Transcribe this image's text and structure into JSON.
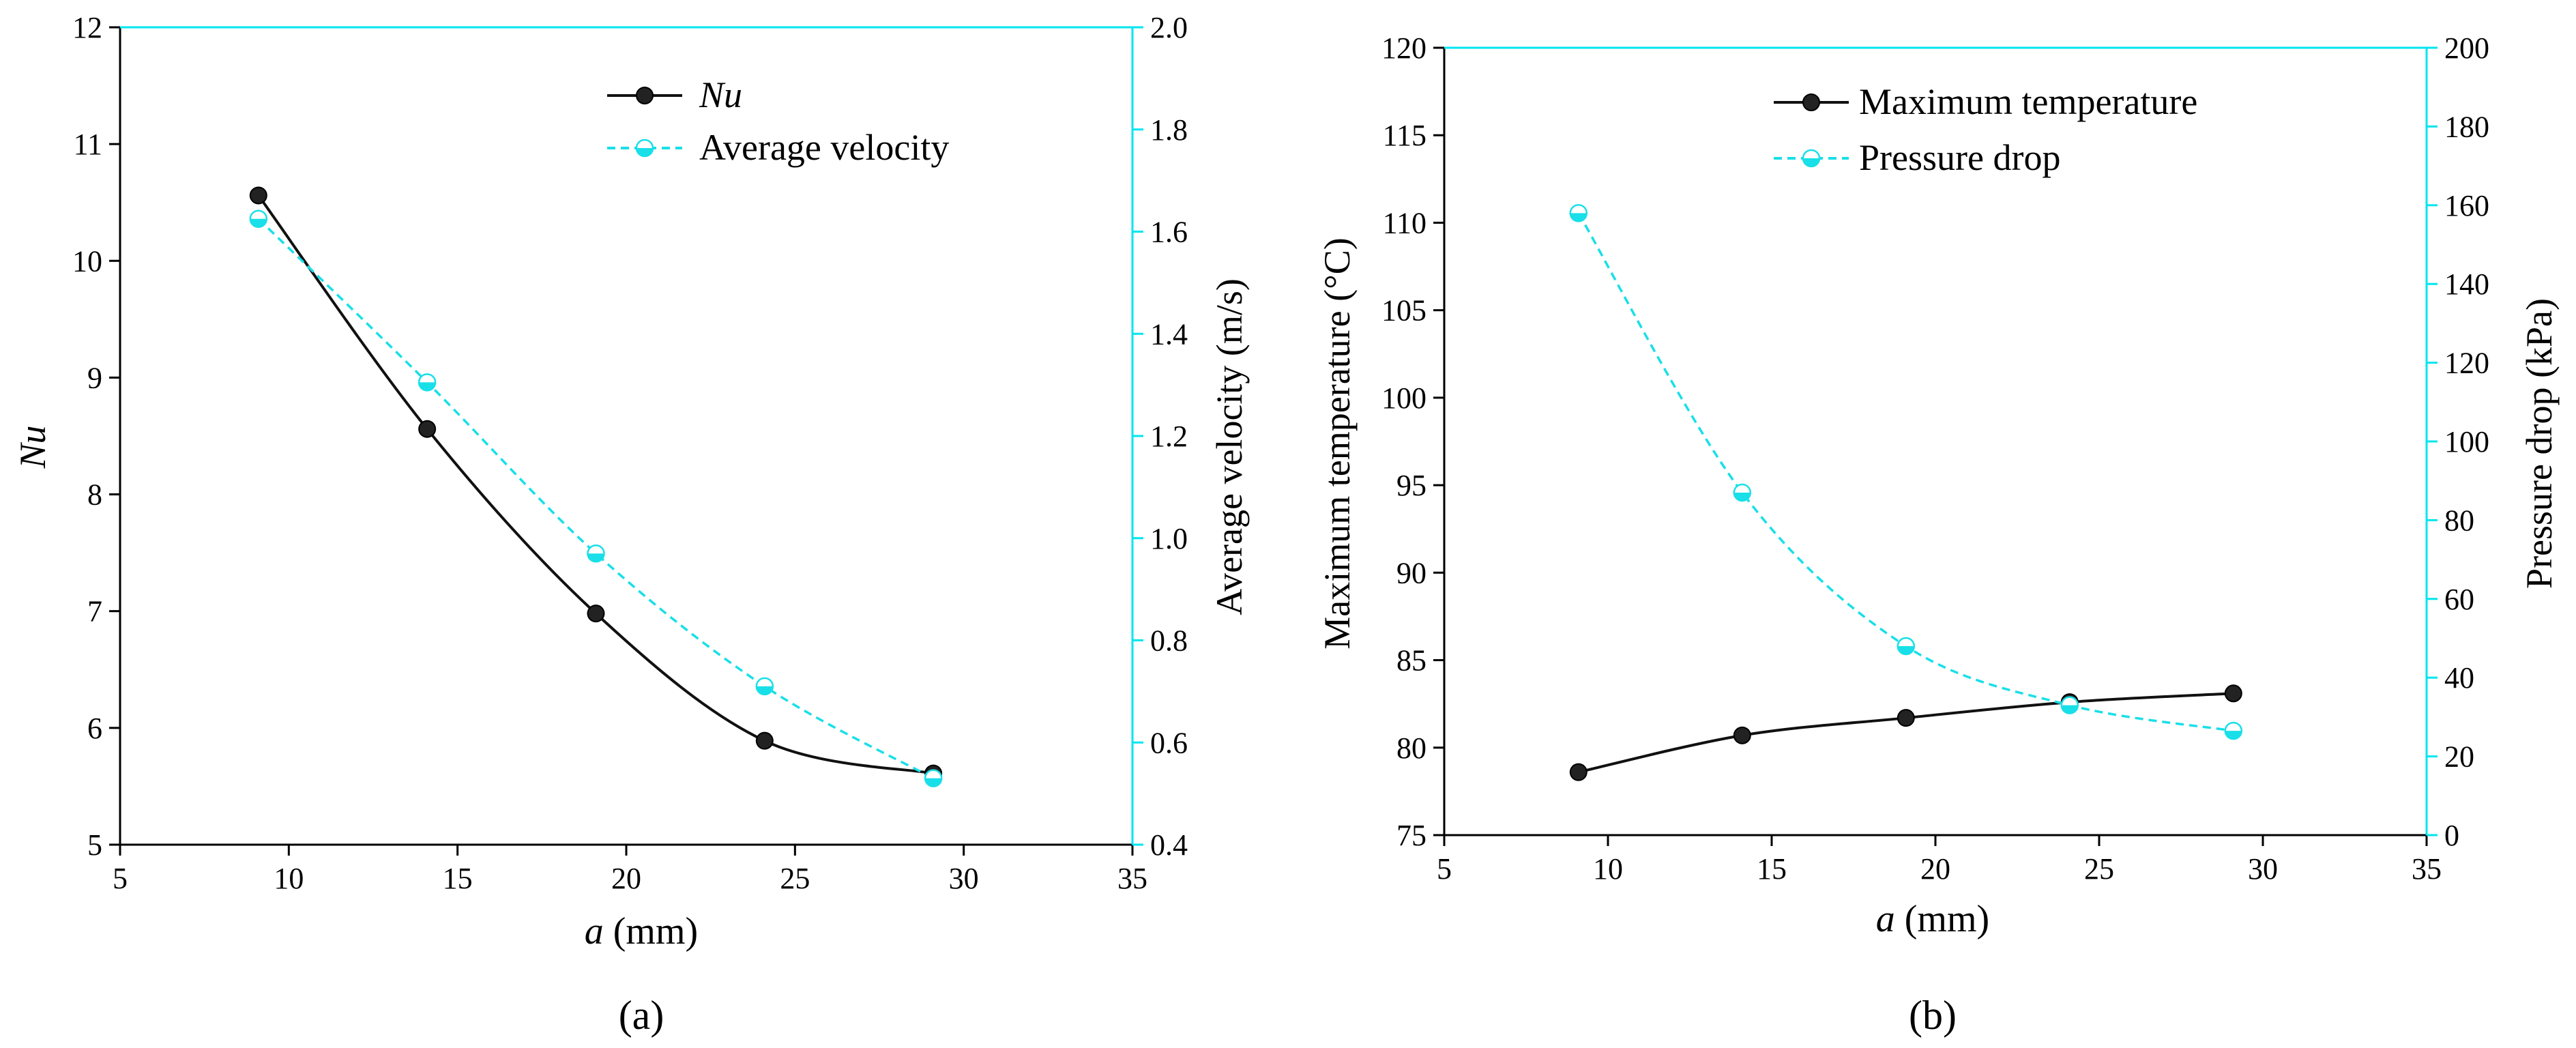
{
  "colors": {
    "left_axis": "#000000",
    "right_axis": "#00e5f0",
    "series1": "#111111",
    "series2": "#19dfe8"
  },
  "chart_data": [
    {
      "type": "line",
      "panel_label": "(a)",
      "xlabel_italic": "a",
      "xlabel_rest": " (mm)",
      "xlim": [
        5,
        35
      ],
      "xticks": [
        5,
        10,
        15,
        20,
        25,
        30,
        35
      ],
      "ylabel": "Nu",
      "ylim": [
        5,
        12
      ],
      "yticks": [
        5,
        6,
        7,
        8,
        9,
        10,
        11,
        12
      ],
      "ylabel2": "Average velocity (m/s)",
      "ylim2": [
        0.4,
        2.0
      ],
      "yticks2": [
        "0.4",
        "0.6",
        "0.8",
        "1.0",
        "1.2",
        "1.4",
        "1.6",
        "1.8",
        "2.0"
      ],
      "legend_position": "top-right",
      "series": [
        {
          "name": "Nu",
          "axis": "left",
          "style": "solid-black-filled-circle",
          "x": [
            9.1,
            14.1,
            19.1,
            24.1,
            29.1
          ],
          "y": [
            10.56,
            8.56,
            6.98,
            5.89,
            5.61
          ]
        },
        {
          "name": "Average velocity",
          "axis": "right",
          "style": "dashed-cyan-half-circle",
          "x": [
            9.1,
            14.1,
            19.1,
            24.1,
            29.1
          ],
          "y": [
            1.625,
            1.305,
            0.97,
            0.71,
            0.53
          ]
        }
      ]
    },
    {
      "type": "line",
      "panel_label": "(b)",
      "xlabel_italic": "a",
      "xlabel_rest": " (mm)",
      "xlim": [
        5,
        35
      ],
      "xticks": [
        5,
        10,
        15,
        20,
        25,
        30,
        35
      ],
      "ylabel": "Maximum temperature (°C)",
      "ylim": [
        75,
        120
      ],
      "yticks": [
        75,
        80,
        85,
        90,
        95,
        100,
        105,
        110,
        115,
        120
      ],
      "ylabel2": "Pressure drop (kPa)",
      "ylim2": [
        0,
        200
      ],
      "yticks2": [
        "0",
        "20",
        "40",
        "60",
        "80",
        "100",
        "120",
        "140",
        "160",
        "180",
        "200"
      ],
      "legend_position": "top-right",
      "series": [
        {
          "name": "Maximum temperature",
          "axis": "left",
          "style": "solid-black-filled-circle",
          "x": [
            9.1,
            14.1,
            19.1,
            24.1,
            29.1
          ],
          "y": [
            78.6,
            80.7,
            81.7,
            82.6,
            83.1
          ]
        },
        {
          "name": "Pressure drop",
          "axis": "right",
          "style": "dashed-cyan-half-circle",
          "x": [
            9.1,
            14.1,
            19.1,
            24.1,
            29.1
          ],
          "y": [
            158,
            87,
            48,
            33,
            26.5
          ]
        }
      ]
    }
  ]
}
